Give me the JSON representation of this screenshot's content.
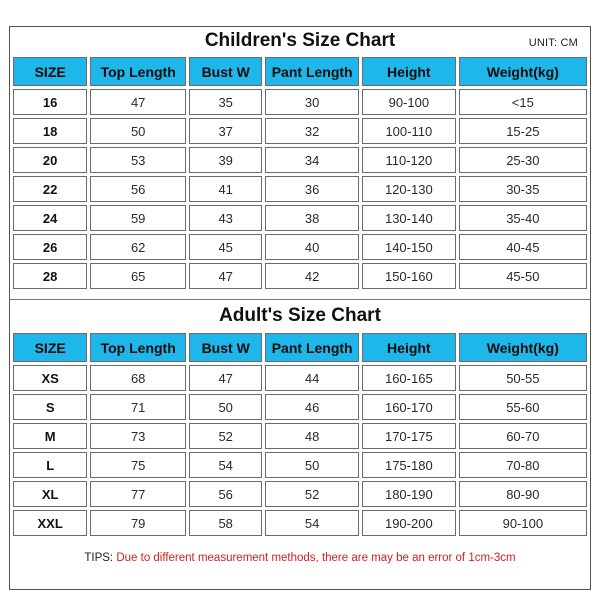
{
  "children": {
    "title": "Children's Size Chart",
    "unit": "UNIT: CM",
    "headers": [
      "SIZE",
      "Top Length",
      "Bust W",
      "Pant Length",
      "Height",
      "Weight(kg)"
    ],
    "rows": [
      [
        "16",
        "47",
        "35",
        "30",
        "90-100",
        "<15"
      ],
      [
        "18",
        "50",
        "37",
        "32",
        "100-110",
        "15-25"
      ],
      [
        "20",
        "53",
        "39",
        "34",
        "110-120",
        "25-30"
      ],
      [
        "22",
        "56",
        "41",
        "36",
        "120-130",
        "30-35"
      ],
      [
        "24",
        "59",
        "43",
        "38",
        "130-140",
        "35-40"
      ],
      [
        "26",
        "62",
        "45",
        "40",
        "140-150",
        "40-45"
      ],
      [
        "28",
        "65",
        "47",
        "42",
        "150-160",
        "45-50"
      ]
    ]
  },
  "adult": {
    "title": "Adult's Size Chart",
    "headers": [
      "SIZE",
      "Top Length",
      "Bust W",
      "Pant Length",
      "Height",
      "Weight(kg)"
    ],
    "rows": [
      [
        "XS",
        "68",
        "47",
        "44",
        "160-165",
        "50-55"
      ],
      [
        "S",
        "71",
        "50",
        "46",
        "160-170",
        "55-60"
      ],
      [
        "M",
        "73",
        "52",
        "48",
        "170-175",
        "60-70"
      ],
      [
        "L",
        "75",
        "54",
        "50",
        "175-180",
        "70-80"
      ],
      [
        "XL",
        "77",
        "56",
        "52",
        "180-190",
        "80-90"
      ],
      [
        "XXL",
        "79",
        "58",
        "54",
        "190-200",
        "90-100"
      ]
    ]
  },
  "tips": {
    "label": "TIPS: ",
    "text": "Due to different measurement methods, there are may be an error of 1cm-3cm"
  },
  "colors": {
    "header_fill": "#1fb6ea",
    "tips_text": "#d02020"
  }
}
